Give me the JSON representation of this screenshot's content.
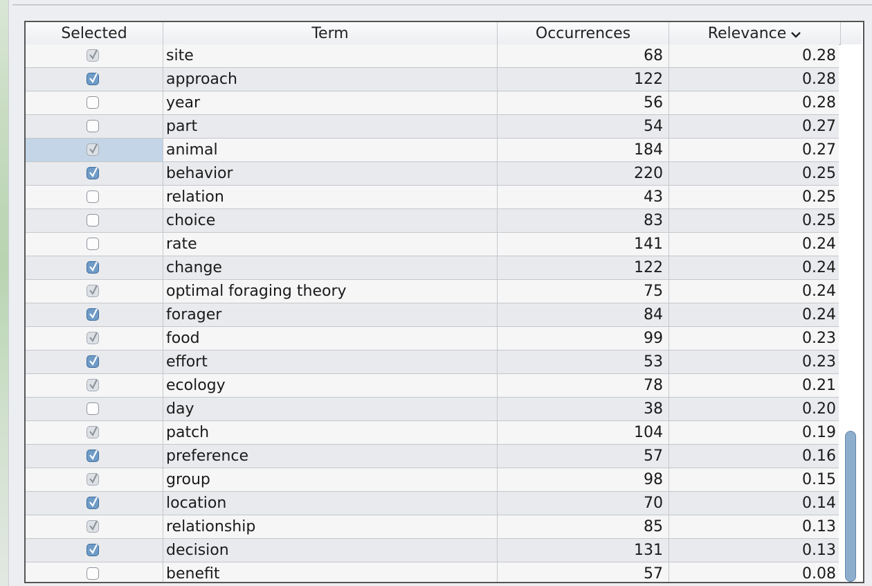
{
  "columns": {
    "selected": "Selected",
    "term": "Term",
    "occurrences": "Occurrences",
    "relevance": "Relevance"
  },
  "sort_indicator_icon": "chevron-down-icon",
  "colors": {
    "checked": "#6f9bc7",
    "selection_highlight": "#c3d5e6",
    "scrollbar": "#8eaecd"
  },
  "rows": [
    {
      "term": "site",
      "occurrences": "68",
      "relevance": "0.28",
      "checked": true,
      "dim": true
    },
    {
      "term": "approach",
      "occurrences": "122",
      "relevance": "0.28",
      "checked": true,
      "dim": false
    },
    {
      "term": "year",
      "occurrences": "56",
      "relevance": "0.28",
      "checked": false,
      "dim": false
    },
    {
      "term": "part",
      "occurrences": "54",
      "relevance": "0.27",
      "checked": false,
      "dim": false
    },
    {
      "term": "animal",
      "occurrences": "184",
      "relevance": "0.27",
      "checked": true,
      "dim": true,
      "selected": true
    },
    {
      "term": "behavior",
      "occurrences": "220",
      "relevance": "0.25",
      "checked": true,
      "dim": false
    },
    {
      "term": "relation",
      "occurrences": "43",
      "relevance": "0.25",
      "checked": false,
      "dim": false
    },
    {
      "term": "choice",
      "occurrences": "83",
      "relevance": "0.25",
      "checked": false,
      "dim": false
    },
    {
      "term": "rate",
      "occurrences": "141",
      "relevance": "0.24",
      "checked": false,
      "dim": false
    },
    {
      "term": "change",
      "occurrences": "122",
      "relevance": "0.24",
      "checked": true,
      "dim": false
    },
    {
      "term": "optimal foraging theory",
      "occurrences": "75",
      "relevance": "0.24",
      "checked": true,
      "dim": true
    },
    {
      "term": "forager",
      "occurrences": "84",
      "relevance": "0.24",
      "checked": true,
      "dim": false
    },
    {
      "term": "food",
      "occurrences": "99",
      "relevance": "0.23",
      "checked": true,
      "dim": true
    },
    {
      "term": "effort",
      "occurrences": "53",
      "relevance": "0.23",
      "checked": true,
      "dim": false
    },
    {
      "term": "ecology",
      "occurrences": "78",
      "relevance": "0.21",
      "checked": true,
      "dim": true
    },
    {
      "term": "day",
      "occurrences": "38",
      "relevance": "0.20",
      "checked": false,
      "dim": false
    },
    {
      "term": "patch",
      "occurrences": "104",
      "relevance": "0.19",
      "checked": true,
      "dim": true
    },
    {
      "term": "preference",
      "occurrences": "57",
      "relevance": "0.16",
      "checked": true,
      "dim": false
    },
    {
      "term": "group",
      "occurrences": "98",
      "relevance": "0.15",
      "checked": true,
      "dim": true
    },
    {
      "term": "location",
      "occurrences": "70",
      "relevance": "0.14",
      "checked": true,
      "dim": false
    },
    {
      "term": "relationship",
      "occurrences": "85",
      "relevance": "0.13",
      "checked": true,
      "dim": true
    },
    {
      "term": "decision",
      "occurrences": "131",
      "relevance": "0.13",
      "checked": true,
      "dim": false
    },
    {
      "term": "benefit",
      "occurrences": "57",
      "relevance": "0.08",
      "checked": false,
      "dim": false
    }
  ]
}
